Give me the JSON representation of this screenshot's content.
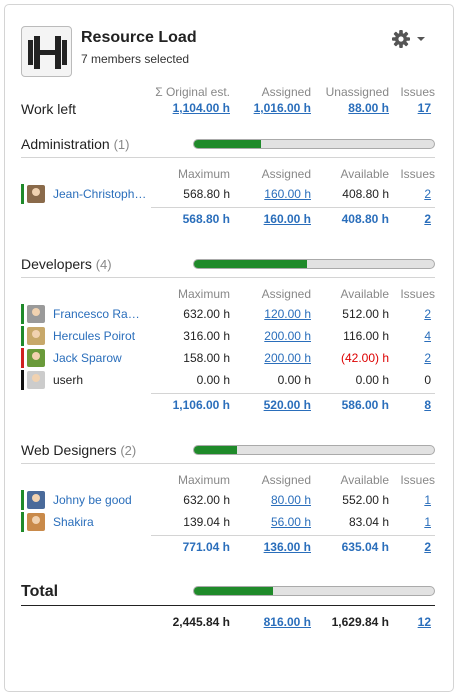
{
  "header": {
    "title": "Resource Load",
    "subtitle": "7 members selected"
  },
  "summary": {
    "label": "Work left",
    "col_headers": [
      "Σ Original est.",
      "Assigned",
      "Unassigned",
      "Issues"
    ],
    "values": [
      "1,104.00 h",
      "1,016.00 h",
      "88.00 h",
      "17"
    ]
  },
  "groups": [
    {
      "name": "Administration",
      "count": "(1)",
      "progress": 0.28,
      "col_headers": [
        "Maximum",
        "Assigned",
        "Available",
        "Issues"
      ],
      "members": [
        {
          "name": "Jean-Christoph…",
          "maximum": "568.80 h",
          "assigned": "160.00 h",
          "available": "408.80 h",
          "issues": "2",
          "status_color": "#1f8a2a",
          "avatar_color": "#8a6a4a"
        }
      ],
      "totals": {
        "maximum": "568.80 h",
        "assigned": "160.00 h",
        "available": "408.80 h",
        "issues": "2"
      }
    },
    {
      "name": "Developers",
      "count": "(4)",
      "progress": 0.47,
      "col_headers": [
        "Maximum",
        "Assigned",
        "Available",
        "Issues"
      ],
      "members": [
        {
          "name": "Francesco Ra…",
          "maximum": "632.00 h",
          "assigned": "120.00 h",
          "available": "512.00 h",
          "issues": "2",
          "status_color": "#1f8a2a",
          "avatar_color": "#9a9a9a"
        },
        {
          "name": "Hercules Poirot",
          "maximum": "316.00 h",
          "assigned": "200.00 h",
          "available": "116.00 h",
          "issues": "4",
          "status_color": "#1f8a2a",
          "avatar_color": "#c7a86a"
        },
        {
          "name": "Jack Sparow",
          "maximum": "158.00 h",
          "assigned": "200.00 h",
          "available": "(42.00) h",
          "issues": "2",
          "status_color": "#d02020",
          "avatar_color": "#6a9a3a"
        },
        {
          "name": "userh",
          "maximum": "0.00 h",
          "assigned": "0.00 h",
          "available": "0.00 h",
          "issues": "0",
          "status_color": "#111111",
          "avatar_color": "#cccccc"
        }
      ],
      "totals": {
        "maximum": "1,106.00 h",
        "assigned": "520.00 h",
        "available": "586.00 h",
        "issues": "8"
      }
    },
    {
      "name": "Web Designers",
      "count": "(2)",
      "progress": 0.18,
      "col_headers": [
        "Maximum",
        "Assigned",
        "Available",
        "Issues"
      ],
      "members": [
        {
          "name": "Johny be good",
          "maximum": "632.00 h",
          "assigned": "80.00 h",
          "available": "552.00 h",
          "issues": "1",
          "status_color": "#1f8a2a",
          "avatar_color": "#4a6a9a"
        },
        {
          "name": "Shakira",
          "maximum": "139.04 h",
          "assigned": "56.00 h",
          "available": "83.04 h",
          "issues": "1",
          "status_color": "#1f8a2a",
          "avatar_color": "#c98a4a"
        }
      ],
      "totals": {
        "maximum": "771.04 h",
        "assigned": "136.00 h",
        "available": "635.04 h",
        "issues": "2"
      }
    }
  ],
  "total": {
    "label": "Total",
    "progress": 0.33,
    "maximum": "2,445.84 h",
    "assigned": "816.00 h",
    "available": "1,629.84 h",
    "issues": "12"
  },
  "icons": {
    "logo": "dumbbell-icon",
    "settings": "gear-icon",
    "menu": "caret-down-icon"
  },
  "colors": {
    "link": "#2a6ebb",
    "progress": "#1f8a2a",
    "negative": "#d00000"
  }
}
